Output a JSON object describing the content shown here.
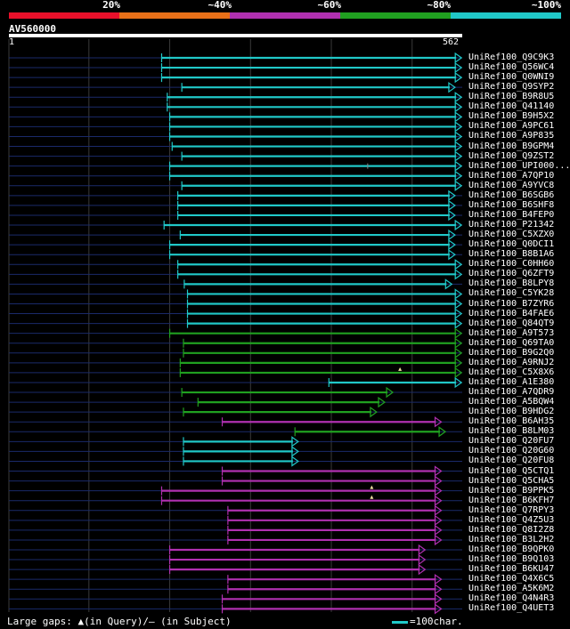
{
  "legend": {
    "labels": [
      "20%",
      "~40%",
      "~60%",
      "~80%",
      "~100%"
    ],
    "colors": [
      "#e8102a",
      "#e87018",
      "#b030b0",
      "#20a020",
      "#20c8c8"
    ]
  },
  "query": {
    "name": "AV560000",
    "start": "1",
    "end": "562",
    "length": 562
  },
  "footer": {
    "gaps_text": "Large gaps: ▲(in Query)/– (in Subject)",
    "scale_text": "=100char."
  },
  "hits": [
    {
      "label": "UniRef100_Q9C9K3",
      "start": 190,
      "end": 560,
      "color": "#20c8c8",
      "marker": null
    },
    {
      "label": "UniRef100_Q56WC4",
      "start": 190,
      "end": 560,
      "color": "#20c8c8",
      "marker": null
    },
    {
      "label": "UniRef100_Q0WNI9",
      "start": 190,
      "end": 560,
      "color": "#20c8c8",
      "marker": null
    },
    {
      "label": "UniRef100_Q9SYP2",
      "start": 215,
      "end": 552,
      "color": "#20c8c8",
      "marker": null
    },
    {
      "label": "UniRef100_B9R8U5",
      "start": 197,
      "end": 560,
      "color": "#20c8c8",
      "marker": null
    },
    {
      "label": "UniRef100_Q41140",
      "start": 197,
      "end": 560,
      "color": "#20c8c8",
      "marker": null
    },
    {
      "label": "UniRef100_B9H5X2",
      "start": 200,
      "end": 560,
      "color": "#20c8c8",
      "marker": null
    },
    {
      "label": "UniRef100_A9PC61",
      "start": 200,
      "end": 560,
      "color": "#20c8c8",
      "marker": null
    },
    {
      "label": "UniRef100_A9P835",
      "start": 200,
      "end": 560,
      "color": "#20c8c8",
      "marker": null
    },
    {
      "label": "UniRef100_B9GPM4",
      "start": 203,
      "end": 560,
      "color": "#20c8c8",
      "marker": null
    },
    {
      "label": "UniRef100_Q9ZST2",
      "start": 215,
      "end": 560,
      "color": "#20c8c8",
      "marker": null
    },
    {
      "label": "UniRef100_UPI000...",
      "start": 200,
      "end": 560,
      "color": "#20c8c8",
      "marker": {
        "pos": 445,
        "kind": "subject"
      }
    },
    {
      "label": "UniRef100_A7QP10",
      "start": 200,
      "end": 560,
      "color": "#20c8c8",
      "marker": null
    },
    {
      "label": "UniRef100_A9YVC8",
      "start": 215,
      "end": 560,
      "color": "#20c8c8",
      "marker": null
    },
    {
      "label": "UniRef100_B6SGB6",
      "start": 210,
      "end": 552,
      "color": "#20c8c8",
      "marker": null
    },
    {
      "label": "UniRef100_B6SHF8",
      "start": 210,
      "end": 552,
      "color": "#20c8c8",
      "marker": null
    },
    {
      "label": "UniRef100_B4FEP0",
      "start": 210,
      "end": 552,
      "color": "#20c8c8",
      "marker": null
    },
    {
      "label": "UniRef100_P21342",
      "start": 193,
      "end": 560,
      "color": "#20c8c8",
      "marker": null
    },
    {
      "label": "UniRef100_C5XZX0",
      "start": 213,
      "end": 552,
      "color": "#20c8c8",
      "marker": null
    },
    {
      "label": "UniRef100_Q0DCI1",
      "start": 200,
      "end": 552,
      "color": "#20c8c8",
      "marker": null
    },
    {
      "label": "UniRef100_B8B1A6",
      "start": 200,
      "end": 552,
      "color": "#20c8c8",
      "marker": null
    },
    {
      "label": "UniRef100_C0HH60",
      "start": 210,
      "end": 560,
      "color": "#20c8c8",
      "marker": null
    },
    {
      "label": "UniRef100_Q6ZFT9",
      "start": 210,
      "end": 560,
      "color": "#20c8c8",
      "marker": null
    },
    {
      "label": "UniRef100_B8LPY8",
      "start": 218,
      "end": 548,
      "color": "#20c8c8",
      "marker": null
    },
    {
      "label": "UniRef100_C5YK28",
      "start": 222,
      "end": 560,
      "color": "#20c8c8",
      "marker": null
    },
    {
      "label": "UniRef100_B7ZYR6",
      "start": 222,
      "end": 560,
      "color": "#20c8c8",
      "marker": null
    },
    {
      "label": "UniRef100_B4FAE6",
      "start": 222,
      "end": 560,
      "color": "#20c8c8",
      "marker": null
    },
    {
      "label": "UniRef100_Q84QT9",
      "start": 222,
      "end": 560,
      "color": "#20c8c8",
      "marker": null
    },
    {
      "label": "UniRef100_A9T573",
      "start": 200,
      "end": 560,
      "color": "#20a020",
      "marker": null
    },
    {
      "label": "UniRef100_Q69TA0",
      "start": 217,
      "end": 560,
      "color": "#20a020",
      "marker": null
    },
    {
      "label": "UniRef100_B9G2Q0",
      "start": 217,
      "end": 560,
      "color": "#20a020",
      "marker": null
    },
    {
      "label": "UniRef100_A9RNJ2",
      "start": 213,
      "end": 560,
      "color": "#20a020",
      "marker": null
    },
    {
      "label": "UniRef100_C5X8X6",
      "start": 213,
      "end": 560,
      "color": "#20a020",
      "marker": {
        "pos": 485,
        "kind": "query"
      }
    },
    {
      "label": "UniRef100_A1E380",
      "start": 397,
      "end": 560,
      "color": "#20c8c8",
      "marker": null
    },
    {
      "label": "UniRef100_A7QDR9",
      "start": 215,
      "end": 475,
      "color": "#20a020",
      "marker": null
    },
    {
      "label": "UniRef100_A5BQW4",
      "start": 235,
      "end": 465,
      "color": "#20a020",
      "marker": null
    },
    {
      "label": "UniRef100_B9HDG2",
      "start": 217,
      "end": 455,
      "color": "#20a020",
      "marker": null
    },
    {
      "label": "UniRef100_B6AH35",
      "start": 265,
      "end": 535,
      "color": "#b030b0",
      "marker": null
    },
    {
      "label": "UniRef100_B8LM03",
      "start": 355,
      "end": 540,
      "color": "#20a020",
      "marker": null
    },
    {
      "label": "UniRef100_Q20FU7",
      "start": 217,
      "end": 358,
      "color": "#20c8c8",
      "marker": null
    },
    {
      "label": "UniRef100_Q20G60",
      "start": 217,
      "end": 358,
      "color": "#20c8c8",
      "marker": null
    },
    {
      "label": "UniRef100_Q20FU8",
      "start": 217,
      "end": 358,
      "color": "#20c8c8",
      "marker": null
    },
    {
      "label": "UniRef100_Q5CTQ1",
      "start": 265,
      "end": 535,
      "color": "#b030b0",
      "marker": null
    },
    {
      "label": "UniRef100_Q5CHA5",
      "start": 265,
      "end": 535,
      "color": "#b030b0",
      "marker": null
    },
    {
      "label": "UniRef100_B9PPK5",
      "start": 190,
      "end": 535,
      "color": "#b030b0",
      "marker": {
        "pos": 450,
        "kind": "query"
      }
    },
    {
      "label": "UniRef100_B6KFH7",
      "start": 190,
      "end": 535,
      "color": "#b030b0",
      "marker": {
        "pos": 450,
        "kind": "query"
      }
    },
    {
      "label": "UniRef100_Q7RPY3",
      "start": 272,
      "end": 535,
      "color": "#b030b0",
      "marker": null
    },
    {
      "label": "UniRef100_Q4Z5U3",
      "start": 272,
      "end": 535,
      "color": "#b030b0",
      "marker": null
    },
    {
      "label": "UniRef100_Q8I2Z8",
      "start": 272,
      "end": 535,
      "color": "#b030b0",
      "marker": null
    },
    {
      "label": "UniRef100_B3L2H2",
      "start": 272,
      "end": 535,
      "color": "#b030b0",
      "marker": null
    },
    {
      "label": "UniRef100_B9QPK0",
      "start": 200,
      "end": 515,
      "color": "#b030b0",
      "marker": null
    },
    {
      "label": "UniRef100_B9Q103",
      "start": 200,
      "end": 515,
      "color": "#b030b0",
      "marker": null
    },
    {
      "label": "UniRef100_B6KU47",
      "start": 200,
      "end": 515,
      "color": "#b030b0",
      "marker": null
    },
    {
      "label": "UniRef100_Q4X6C5",
      "start": 272,
      "end": 535,
      "color": "#b030b0",
      "marker": null
    },
    {
      "label": "UniRef100_A5K6M2",
      "start": 272,
      "end": 535,
      "color": "#b030b0",
      "marker": null
    },
    {
      "label": "UniRef100_Q4N4R3",
      "start": 265,
      "end": 535,
      "color": "#b030b0",
      "marker": null
    },
    {
      "label": "UniRef100_Q4UET3",
      "start": 265,
      "end": 535,
      "color": "#b030b0",
      "marker": null
    }
  ]
}
